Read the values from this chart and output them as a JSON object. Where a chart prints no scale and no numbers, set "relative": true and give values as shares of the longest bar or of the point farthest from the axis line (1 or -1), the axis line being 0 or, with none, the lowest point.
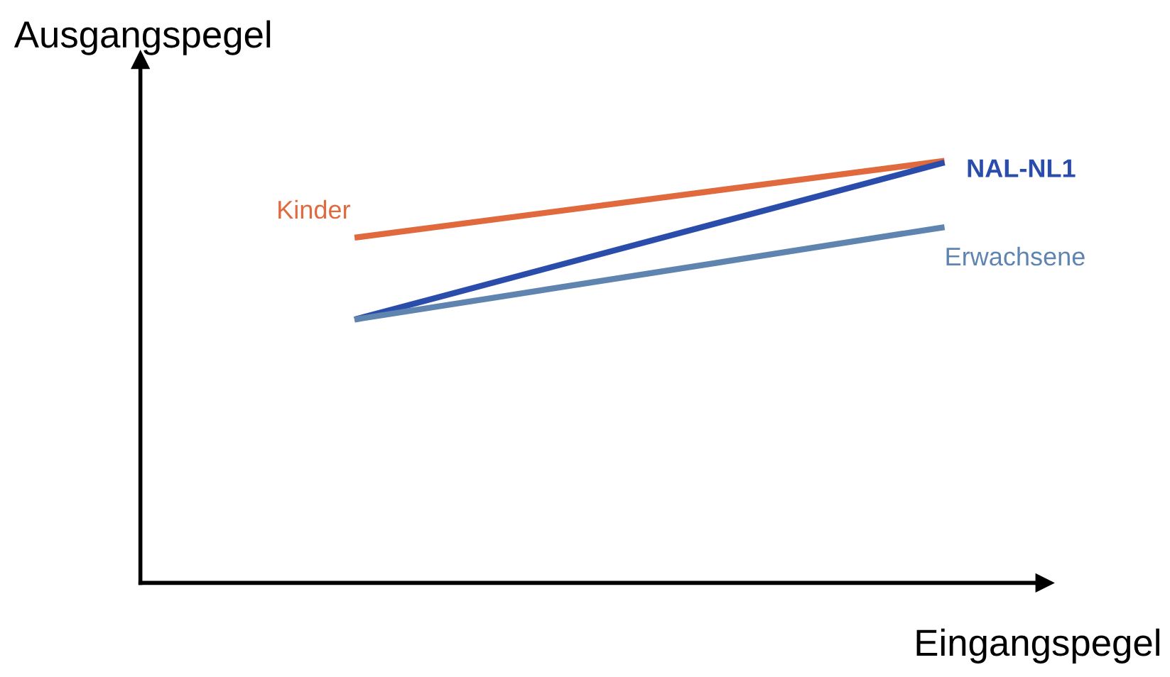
{
  "chart_data": {
    "type": "line",
    "relative": true,
    "xlabel": "Eingangspegel",
    "ylabel": "Ausgangspegel",
    "categories": [
      null,
      null
    ],
    "grid": false,
    "legend": false,
    "marker": "none",
    "line_style": "solid",
    "series": [
      {
        "name": "Kinder",
        "color": "#e06a3e",
        "values": [
          0.818,
          1.0
        ]
      },
      {
        "name": "NAL-NL1",
        "color": "#2a4dab",
        "values": [
          0.624,
          0.996
        ]
      },
      {
        "name": "Erwachsene",
        "color": "#5f84b0",
        "values": [
          0.624,
          0.843
        ]
      }
    ]
  }
}
